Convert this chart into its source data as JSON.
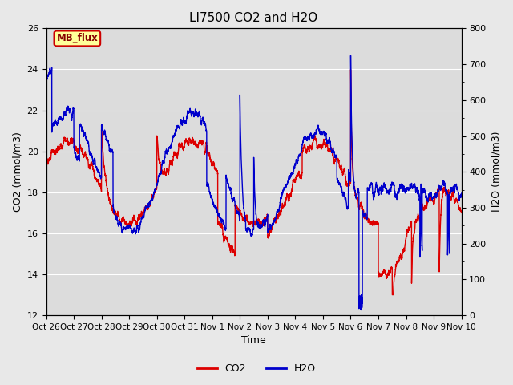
{
  "title": "LI7500 CO2 and H2O",
  "xlabel": "Time",
  "ylabel_left": "CO2 (mmol/m3)",
  "ylabel_right": "H2O (mmol/m3)",
  "ylim_left": [
    12,
    26
  ],
  "ylim_right": [
    0,
    800
  ],
  "xtick_labels": [
    "Oct 26",
    "Oct 27",
    "Oct 28",
    "Oct 29",
    "Oct 30",
    "Oct 31",
    "Nov 1",
    "Nov 2",
    "Nov 3",
    "Nov 4",
    "Nov 5",
    "Nov 6",
    "Nov 7",
    "Nov 8",
    "Nov 9",
    "Nov 10"
  ],
  "bg_color": "#e8e8e8",
  "plot_bg_color": "#dcdcdc",
  "annotation_text": "MB_flux",
  "annotation_bg": "#ffff99",
  "annotation_border": "#cc0000",
  "co2_color": "#dd0000",
  "h2o_color": "#0000cc",
  "linewidth": 1.0,
  "seed": 12345
}
